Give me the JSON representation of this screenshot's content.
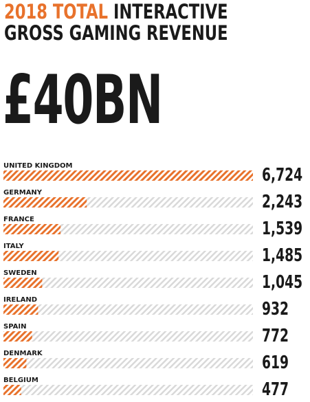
{
  "header": {
    "title_accent": "2018 TOTAL",
    "title_rest": " INTERACTIVE",
    "title_line2": "GROSS GAMING REVENUE",
    "headline": "£40BN"
  },
  "colors": {
    "accent": "#e8722c",
    "track": "#d9d9d9",
    "text": "#1a1a1a"
  },
  "chart_data": {
    "type": "bar",
    "orientation": "horizontal",
    "categories": [
      "UNITED KINGDOM",
      "GERMANY",
      "FRANCE",
      "ITALY",
      "SWEDEN",
      "IRELAND",
      "SPAIN",
      "DENMARK",
      "BELGIUM"
    ],
    "values": [
      6724,
      2243,
      1539,
      1485,
      1045,
      932,
      772,
      619,
      477
    ],
    "value_labels": [
      "6,724",
      "2,243",
      "1,539",
      "1,485",
      "1,045",
      "932",
      "772",
      "619",
      "477"
    ],
    "xlim": [
      0,
      6724
    ],
    "grid": false,
    "legend": "none"
  }
}
